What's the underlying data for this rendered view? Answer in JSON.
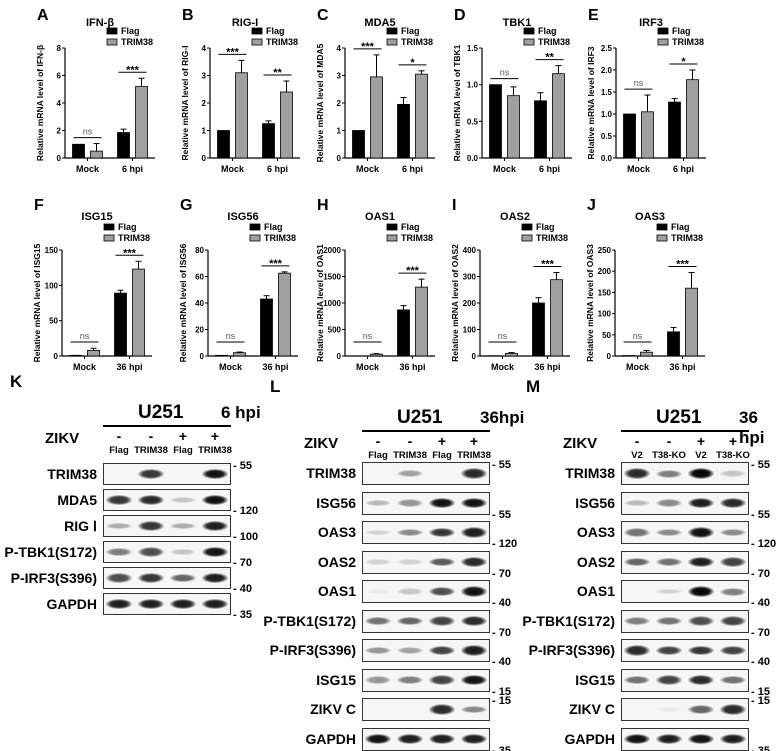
{
  "colors": {
    "flag": "#000000",
    "trim38": "#a0a0a0",
    "axis": "#000000"
  },
  "legend": [
    "Flag",
    "TRIM38"
  ],
  "chart_data": [
    {
      "type": "bar",
      "panel": "A",
      "title": "IFN-β",
      "ylabel": "Relative mRNA level of IFN-β",
      "categories": [
        "Mock",
        "6 hpi"
      ],
      "ylim": [
        0,
        8
      ],
      "yticks": [
        0,
        2,
        4,
        6,
        8
      ],
      "series": [
        {
          "name": "Flag",
          "values": [
            1,
            1.85
          ],
          "errors": [
            0,
            0.25
          ]
        },
        {
          "name": "TRIM38",
          "values": [
            0.5,
            5.2
          ],
          "errors": [
            0.55,
            0.6
          ]
        }
      ],
      "significance": [
        "ns",
        "***"
      ]
    },
    {
      "type": "bar",
      "panel": "B",
      "title": "RIG-I",
      "ylabel": "Relative mRNA level of RIG-I",
      "categories": [
        "Mock",
        "6 hpi"
      ],
      "ylim": [
        0,
        4
      ],
      "yticks": [
        0,
        1,
        2,
        3,
        4
      ],
      "series": [
        {
          "name": "Flag",
          "values": [
            1,
            1.25
          ],
          "errors": [
            0,
            0.1
          ]
        },
        {
          "name": "TRIM38",
          "values": [
            3.1,
            2.4
          ],
          "errors": [
            0.45,
            0.4
          ]
        }
      ],
      "significance": [
        "***",
        "**"
      ]
    },
    {
      "type": "bar",
      "panel": "C",
      "title": "MDA5",
      "ylabel": "Relative mRNA level of MDA5",
      "categories": [
        "Mock",
        "6 hpi"
      ],
      "ylim": [
        0,
        4
      ],
      "yticks": [
        0,
        1,
        2,
        3,
        4
      ],
      "series": [
        {
          "name": "Flag",
          "values": [
            1,
            1.95
          ],
          "errors": [
            0,
            0.25
          ]
        },
        {
          "name": "TRIM38",
          "values": [
            2.95,
            3.05
          ],
          "errors": [
            0.8,
            0.12
          ]
        }
      ],
      "significance": [
        "***",
        "*"
      ]
    },
    {
      "type": "bar",
      "panel": "D",
      "title": "TBK1",
      "ylabel": "Relative mRNA level of TBK1",
      "categories": [
        "Mock",
        "6 hpi"
      ],
      "ylim": [
        0,
        1.5
      ],
      "yticks": [
        "0.0",
        "0.5",
        "1.0",
        "1.5"
      ],
      "series": [
        {
          "name": "Flag",
          "values": [
            1,
            0.78
          ],
          "errors": [
            0,
            0.11
          ]
        },
        {
          "name": "TRIM38",
          "values": [
            0.85,
            1.15
          ],
          "errors": [
            0.12,
            0.11
          ]
        }
      ],
      "significance": [
        "ns",
        "**"
      ]
    },
    {
      "type": "bar",
      "panel": "E",
      "title": "IRF3",
      "ylabel": "Relative mRNA level of IRF3",
      "categories": [
        "Mock",
        "6 hpi"
      ],
      "ylim": [
        0,
        2.5
      ],
      "yticks": [
        "0.0",
        "0.5",
        "1.0",
        "1.5",
        "2.0",
        "2.5"
      ],
      "series": [
        {
          "name": "Flag",
          "values": [
            1,
            1.27
          ],
          "errors": [
            0,
            0.08
          ]
        },
        {
          "name": "TRIM38",
          "values": [
            1.05,
            1.78
          ],
          "errors": [
            0.38,
            0.22
          ]
        }
      ],
      "significance": [
        "ns",
        "*"
      ]
    },
    {
      "type": "bar",
      "panel": "F",
      "title": "ISG15",
      "ylabel": "Relative mRNA level of ISG15",
      "categories": [
        "Mock",
        "36 hpi"
      ],
      "ylim": [
        0,
        150
      ],
      "yticks": [
        0,
        50,
        100,
        150
      ],
      "series": [
        {
          "name": "Flag",
          "values": [
            1,
            89
          ],
          "errors": [
            0,
            4
          ]
        },
        {
          "name": "TRIM38",
          "values": [
            8,
            123
          ],
          "errors": [
            3,
            11
          ]
        }
      ],
      "significance": [
        "ns",
        "***"
      ]
    },
    {
      "type": "bar",
      "panel": "G",
      "title": "ISG56",
      "ylabel": "Relative mRNA level of ISG56",
      "categories": [
        "Mock",
        "36 hpi"
      ],
      "ylim": [
        0,
        80
      ],
      "yticks": [
        0,
        20,
        40,
        60,
        80
      ],
      "series": [
        {
          "name": "Flag",
          "values": [
            0.5,
            43
          ],
          "errors": [
            0,
            2.5
          ]
        },
        {
          "name": "TRIM38",
          "values": [
            2.5,
            62.5
          ],
          "errors": [
            0.5,
            1
          ]
        }
      ],
      "significance": [
        "ns",
        "***"
      ]
    },
    {
      "type": "bar",
      "panel": "H",
      "title": "OAS1",
      "ylabel": "Relative mRNA level of OAS1",
      "categories": [
        "Mock",
        "36 hpi"
      ],
      "ylim": [
        0,
        2000
      ],
      "yticks": [
        0,
        500,
        1000,
        1500,
        2000
      ],
      "series": [
        {
          "name": "Flag",
          "values": [
            1,
            870
          ],
          "errors": [
            0,
            80
          ]
        },
        {
          "name": "TRIM38",
          "values": [
            35,
            1300
          ],
          "errors": [
            10,
            150
          ]
        }
      ],
      "significance": [
        "ns",
        "***"
      ]
    },
    {
      "type": "bar",
      "panel": "I",
      "title": "OAS2",
      "ylabel": "Relative mRNA level of OAS2",
      "categories": [
        "Mock",
        "36 hpi"
      ],
      "ylim": [
        0,
        400
      ],
      "yticks": [
        0,
        100,
        200,
        300,
        400
      ],
      "series": [
        {
          "name": "Flag",
          "values": [
            1,
            200
          ],
          "errors": [
            0,
            20
          ]
        },
        {
          "name": "TRIM38",
          "values": [
            10,
            288
          ],
          "errors": [
            3,
            27
          ]
        }
      ],
      "significance": [
        "ns",
        "***"
      ]
    },
    {
      "type": "bar",
      "panel": "J",
      "title": "OAS3",
      "ylabel": "Relative mRNA level of OAS3",
      "categories": [
        "Mock",
        "36 hpi"
      ],
      "ylim": [
        0,
        250
      ],
      "yticks": [
        0,
        50,
        100,
        150,
        200,
        250
      ],
      "series": [
        {
          "name": "Flag",
          "values": [
            1,
            57
          ],
          "errors": [
            0,
            10
          ]
        },
        {
          "name": "TRIM38",
          "values": [
            9,
            160
          ],
          "errors": [
            4,
            37
          ]
        }
      ],
      "significance": [
        "ns",
        "***"
      ]
    }
  ],
  "blots": [
    {
      "panel": "K",
      "cell": "U251",
      "time": "6 hpi",
      "zikv_label": "ZIKV",
      "zikv": [
        "-",
        "-",
        "+",
        "+"
      ],
      "lanes": [
        "Flag",
        "TRIM38",
        "Flag",
        "TRIM38"
      ],
      "rows": [
        {
          "label": "TRIM38",
          "marker": "55",
          "bands": [
            0,
            0.8,
            0,
            0.95
          ]
        },
        {
          "label": "MDA5",
          "marker": "120",
          "bands": [
            0.8,
            0.85,
            0.2,
            0.95
          ]
        },
        {
          "label": "RIG Ⅰ",
          "marker": "100",
          "bands": [
            0.3,
            0.8,
            0.3,
            0.9
          ]
        },
        {
          "label": "P-TBK1(S172)",
          "marker": "70",
          "bands": [
            0.5,
            0.7,
            0.2,
            0.95
          ]
        },
        {
          "label": "P-IRF3(S396)",
          "marker": "40",
          "bands": [
            0.7,
            0.8,
            0.6,
            0.9
          ]
        },
        {
          "label": "GAPDH",
          "marker": "35",
          "bands": [
            0.9,
            0.9,
            0.9,
            0.9
          ]
        }
      ]
    },
    {
      "panel": "L",
      "cell": "U251",
      "time": "36hpi",
      "zikv_label": "ZIKV",
      "zikv": [
        "-",
        "-",
        "+",
        "+"
      ],
      "lanes": [
        "Flag",
        "TRIM38",
        "Flag",
        "TRIM38"
      ],
      "rows": [
        {
          "label": "TRIM38",
          "marker": "55",
          "bands": [
            0,
            0.35,
            0,
            0.85
          ]
        },
        {
          "label": "ISG56",
          "marker": "55",
          "bands": [
            0.25,
            0.4,
            0.95,
            0.95
          ]
        },
        {
          "label": "OAS3",
          "marker": "120",
          "bands": [
            0.15,
            0.45,
            0.8,
            0.9
          ]
        },
        {
          "label": "OAS2",
          "marker": "70",
          "bands": [
            0.15,
            0.15,
            0.65,
            0.85
          ]
        },
        {
          "label": "OAS1",
          "marker": "40",
          "bands": [
            0.05,
            0.2,
            0.7,
            0.95
          ]
        },
        {
          "label": "P-TBK1(S172)",
          "marker": "70",
          "bands": [
            0.55,
            0.6,
            0.75,
            0.85
          ]
        },
        {
          "label": "P-IRF3(S396)",
          "marker": "40",
          "bands": [
            0.4,
            0.35,
            0.75,
            0.9
          ]
        },
        {
          "label": "ISG15",
          "marker": "15",
          "bands": [
            0.4,
            0.5,
            0.75,
            0.95
          ]
        },
        {
          "label": "ZIKV C",
          "marker": "15",
          "bands": [
            0,
            0,
            0.85,
            0.45
          ]
        },
        {
          "label": "GAPDH",
          "marker": "35",
          "bands": [
            0.95,
            0.9,
            0.9,
            0.9
          ]
        }
      ]
    },
    {
      "panel": "M",
      "cell": "U251",
      "time": "36 hpi",
      "zikv_label": "ZIKV",
      "zikv": [
        "-",
        "-",
        "+",
        "+"
      ],
      "lanes": [
        "V2",
        "T38-KO",
        "V2",
        "T38-KO"
      ],
      "rows": [
        {
          "label": "TRIM38",
          "marker": "55",
          "bands": [
            0.85,
            0.5,
            1,
            0.2
          ]
        },
        {
          "label": "ISG56",
          "marker": "55",
          "bands": [
            0.25,
            0.45,
            0.9,
            0.85
          ]
        },
        {
          "label": "OAS3",
          "marker": "120",
          "bands": [
            0.55,
            0.45,
            0.95,
            0.45
          ]
        },
        {
          "label": "OAS2",
          "marker": "70",
          "bands": [
            0.6,
            0.55,
            0.9,
            0.75
          ]
        },
        {
          "label": "OAS1",
          "marker": "40",
          "bands": [
            0,
            0.15,
            1,
            0.5
          ]
        },
        {
          "label": "P-TBK1(S172)",
          "marker": "70",
          "bands": [
            0.5,
            0.55,
            0.7,
            0.75
          ]
        },
        {
          "label": "P-IRF3(S396)",
          "marker": "40",
          "bands": [
            0.85,
            0.75,
            0.8,
            0.75
          ]
        },
        {
          "label": "ISG15",
          "marker": "15",
          "bands": [
            0.55,
            0.75,
            0.85,
            0.55
          ]
        },
        {
          "label": "ZIKV C",
          "marker": "15",
          "bands": [
            0,
            0.05,
            0.6,
            0.85
          ]
        },
        {
          "label": "GAPDH",
          "marker": "35",
          "bands": [
            0.95,
            0.9,
            0.95,
            0.9
          ]
        }
      ]
    }
  ]
}
